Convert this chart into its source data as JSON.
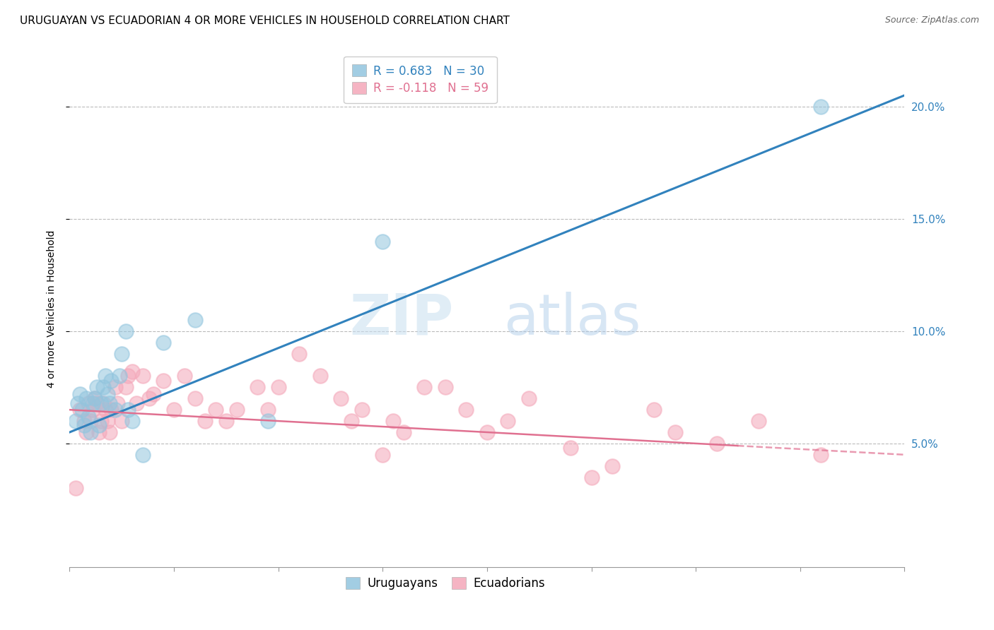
{
  "title": "URUGUAYAN VS ECUADORIAN 4 OR MORE VEHICLES IN HOUSEHOLD CORRELATION CHART",
  "source": "Source: ZipAtlas.com",
  "ylabel": "4 or more Vehicles in Household",
  "xlim": [
    0.0,
    0.4
  ],
  "ylim": [
    -0.005,
    0.225
  ],
  "yticks": [
    0.05,
    0.1,
    0.15,
    0.2
  ],
  "ytick_labels": [
    "5.0%",
    "10.0%",
    "15.0%",
    "20.0%"
  ],
  "legend_uruguayan": "R = 0.683   N = 30",
  "legend_ecuadorian": "R = -0.118   N = 59",
  "uruguayan_color": "#92c5de",
  "ecuadorian_color": "#f4a7b9",
  "uruguayan_line_color": "#3182bd",
  "ecuadorian_line_color": "#e07090",
  "watermark_zip": "ZIP",
  "watermark_atlas": "atlas",
  "uruguayan_x": [
    0.003,
    0.004,
    0.005,
    0.006,
    0.007,
    0.008,
    0.009,
    0.01,
    0.011,
    0.012,
    0.013,
    0.014,
    0.015,
    0.016,
    0.017,
    0.018,
    0.019,
    0.02,
    0.022,
    0.024,
    0.025,
    0.027,
    0.028,
    0.03,
    0.035,
    0.045,
    0.06,
    0.095,
    0.15,
    0.36
  ],
  "uruguayan_y": [
    0.06,
    0.068,
    0.072,
    0.065,
    0.058,
    0.07,
    0.062,
    0.055,
    0.068,
    0.07,
    0.075,
    0.058,
    0.068,
    0.075,
    0.08,
    0.072,
    0.068,
    0.078,
    0.065,
    0.08,
    0.09,
    0.1,
    0.065,
    0.06,
    0.045,
    0.095,
    0.105,
    0.06,
    0.14,
    0.2
  ],
  "ecuadorian_x": [
    0.003,
    0.005,
    0.007,
    0.008,
    0.009,
    0.01,
    0.011,
    0.012,
    0.013,
    0.014,
    0.015,
    0.016,
    0.017,
    0.018,
    0.019,
    0.02,
    0.022,
    0.023,
    0.025,
    0.027,
    0.028,
    0.03,
    0.032,
    0.035,
    0.038,
    0.04,
    0.045,
    0.05,
    0.055,
    0.06,
    0.065,
    0.07,
    0.075,
    0.08,
    0.09,
    0.095,
    0.1,
    0.11,
    0.12,
    0.13,
    0.135,
    0.14,
    0.15,
    0.155,
    0.16,
    0.17,
    0.18,
    0.19,
    0.2,
    0.21,
    0.22,
    0.24,
    0.25,
    0.26,
    0.28,
    0.29,
    0.31,
    0.33,
    0.36
  ],
  "ecuadorian_y": [
    0.03,
    0.065,
    0.06,
    0.055,
    0.068,
    0.06,
    0.065,
    0.07,
    0.068,
    0.055,
    0.06,
    0.068,
    0.065,
    0.06,
    0.055,
    0.065,
    0.075,
    0.068,
    0.06,
    0.075,
    0.08,
    0.082,
    0.068,
    0.08,
    0.07,
    0.072,
    0.078,
    0.065,
    0.08,
    0.07,
    0.06,
    0.065,
    0.06,
    0.065,
    0.075,
    0.065,
    0.075,
    0.09,
    0.08,
    0.07,
    0.06,
    0.065,
    0.045,
    0.06,
    0.055,
    0.075,
    0.075,
    0.065,
    0.055,
    0.06,
    0.07,
    0.048,
    0.035,
    0.04,
    0.065,
    0.055,
    0.05,
    0.06,
    0.045
  ],
  "title_fontsize": 11,
  "source_fontsize": 9,
  "axis_label_fontsize": 10,
  "tick_fontsize": 11,
  "legend_fontsize": 12
}
